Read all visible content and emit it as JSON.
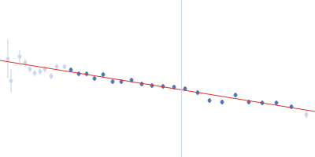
{
  "chart_data": {
    "type": "scatter",
    "xlim": [
      0,
      400
    ],
    "ylim": [
      0,
      200
    ],
    "tick_labels": false,
    "grid": false,
    "series": [
      {
        "type": "scatter",
        "color": "#c5d0e8",
        "marker": "circle",
        "x": [
          10,
          14,
          25,
          32,
          38,
          44,
          51,
          57,
          65,
          72,
          82
        ],
        "values": [
          125,
          97,
          128,
          120,
          112,
          107,
          109,
          112,
          103,
          115,
          115
        ],
        "errors": [
          25,
          15,
          8,
          5,
          4,
          4,
          4,
          4,
          4,
          4,
          3
        ]
      },
      {
        "type": "scatter",
        "color": "#3a62b0",
        "marker": "circle",
        "x": [
          90,
          100,
          110,
          120,
          131,
          143,
          154,
          167,
          180,
          193,
          207,
          221,
          235,
          251,
          266,
          282,
          299,
          316,
          333,
          351,
          370
        ],
        "values": [
          111,
          106,
          106,
          100,
          105,
          96,
          96,
          98,
          93,
          91,
          90,
          89,
          87,
          82,
          72,
          70,
          79,
          70,
          69,
          69,
          64
        ],
        "errors": [
          3,
          3,
          3,
          3,
          3,
          3,
          3,
          3,
          3,
          3,
          3,
          3,
          3,
          3,
          3,
          3,
          3,
          3,
          3,
          3,
          3
        ]
      },
      {
        "type": "scatter",
        "color": "#c5d0e8",
        "marker": "circle",
        "x": [
          389
        ],
        "values": [
          54
        ],
        "errors": [
          5
        ]
      },
      {
        "type": "line",
        "color": "#e0302a",
        "line_style": "solid",
        "x": [
          0,
          400
        ],
        "values": [
          123,
          58
        ]
      }
    ],
    "vertical_line": {
      "x": 230,
      "color": "#c8d2e6"
    }
  }
}
